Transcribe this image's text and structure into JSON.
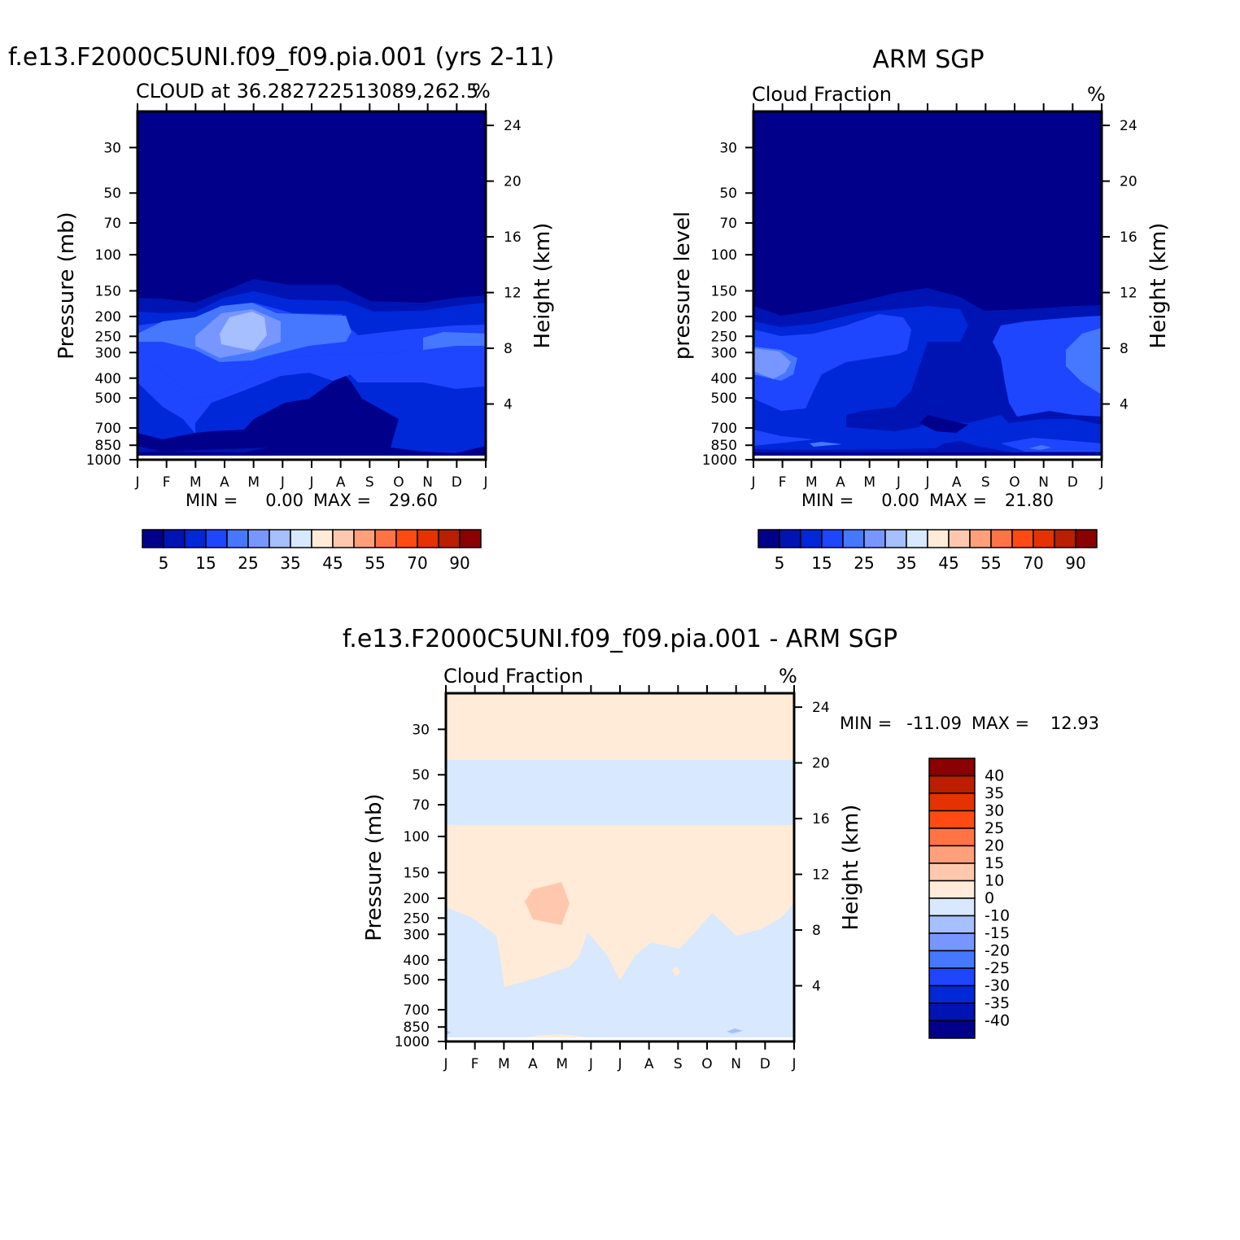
{
  "figure": {
    "background": "#ffffff"
  },
  "months": [
    "J",
    "F",
    "M",
    "A",
    "M",
    "J",
    "J",
    "A",
    "S",
    "O",
    "N",
    "D",
    "J"
  ],
  "pressure_ticks": [
    30,
    50,
    70,
    100,
    150,
    200,
    250,
    300,
    400,
    500,
    700,
    850,
    1000
  ],
  "height_ticks_km": [
    4,
    8,
    12,
    16,
    20,
    24
  ],
  "chart_data": [
    {
      "type": "contour",
      "id": "model",
      "suptitle": "f.e13.F2000C5UNI.f09_f09.pia.001 (yrs 2-11)",
      "left_title": "CLOUD at 36.282722513089,262.5",
      "right_title": "%",
      "ylabel": "Pressure (mb)",
      "y2label": "Height (km)",
      "x": [
        "J",
        "F",
        "M",
        "A",
        "M",
        "J",
        "J",
        "A",
        "S",
        "O",
        "N",
        "D",
        "J"
      ],
      "ylim_mb": [
        1000,
        20
      ],
      "y2lim_km": [
        0,
        25
      ],
      "stats": {
        "min_label": "MIN =",
        "min": "0.00",
        "max_label": "MAX =",
        "max": "29.60"
      },
      "colorbar": {
        "orientation": "horizontal",
        "levels": [
          5,
          10,
          15,
          20,
          25,
          30,
          35,
          40,
          45,
          50,
          55,
          60,
          70,
          80,
          90
        ],
        "labels": [
          "5",
          "15",
          "25",
          "35",
          "45",
          "55",
          "70",
          "90"
        ],
        "colors": [
          "#00008b",
          "#0014b4",
          "#0028d8",
          "#1e46ff",
          "#4678ff",
          "#7896ff",
          "#a5bfff",
          "#d7e8ff",
          "#ffebd7",
          "#ffc8ae",
          "#ffa07a",
          "#ff7345",
          "#ff4a14",
          "#e63200",
          "#bb1e00",
          "#8b0000"
        ]
      }
    },
    {
      "type": "contour",
      "id": "obs",
      "suptitle": "ARM SGP",
      "left_title": "Cloud Fraction",
      "right_title": "%",
      "ylabel": "pressure level",
      "y2label": "Height (km)",
      "x": [
        "J",
        "F",
        "M",
        "A",
        "M",
        "J",
        "J",
        "A",
        "S",
        "O",
        "N",
        "D",
        "J"
      ],
      "ylim_mb": [
        1000,
        20
      ],
      "y2lim_km": [
        0,
        25
      ],
      "stats": {
        "min_label": "MIN =",
        "min": "0.00",
        "max_label": "MAX =",
        "max": "21.80"
      },
      "colorbar": {
        "orientation": "horizontal",
        "levels": [
          5,
          10,
          15,
          20,
          25,
          30,
          35,
          40,
          45,
          50,
          55,
          60,
          70,
          80,
          90
        ],
        "labels": [
          "5",
          "15",
          "25",
          "35",
          "45",
          "55",
          "70",
          "90"
        ],
        "colors": [
          "#00008b",
          "#0014b4",
          "#0028d8",
          "#1e46ff",
          "#4678ff",
          "#7896ff",
          "#a5bfff",
          "#d7e8ff",
          "#ffebd7",
          "#ffc8ae",
          "#ffa07a",
          "#ff7345",
          "#ff4a14",
          "#e63200",
          "#bb1e00",
          "#8b0000"
        ]
      }
    },
    {
      "type": "contour",
      "id": "diff",
      "suptitle": "f.e13.F2000C5UNI.f09_f09.pia.001 - ARM SGP",
      "left_title": "Cloud Fraction",
      "right_title": "%",
      "ylabel": "Pressure (mb)",
      "y2label": "Height (km)",
      "x": [
        "J",
        "F",
        "M",
        "A",
        "M",
        "J",
        "J",
        "A",
        "S",
        "O",
        "N",
        "D",
        "J"
      ],
      "ylim_mb": [
        1000,
        20
      ],
      "y2lim_km": [
        0,
        25
      ],
      "stats": {
        "min_label": "MIN =",
        "min": "-11.09",
        "max_label": "MAX =",
        "max": "12.93"
      },
      "colorbar": {
        "orientation": "vertical",
        "labels_top_to_bottom": [
          "40",
          "35",
          "30",
          "25",
          "20",
          "15",
          "10",
          "0",
          "-10",
          "-15",
          "-20",
          "-25",
          "-30",
          "-35",
          "-40"
        ],
        "colors_top_to_bottom": [
          "#8b0000",
          "#bb1e00",
          "#e63200",
          "#ff4a14",
          "#ff7345",
          "#ffa07a",
          "#ffc8ae",
          "#ffebd7",
          "#d7e8ff",
          "#a5bfff",
          "#7896ff",
          "#4678ff",
          "#1e46ff",
          "#0028d8",
          "#0014b4",
          "#00008b"
        ]
      }
    }
  ]
}
